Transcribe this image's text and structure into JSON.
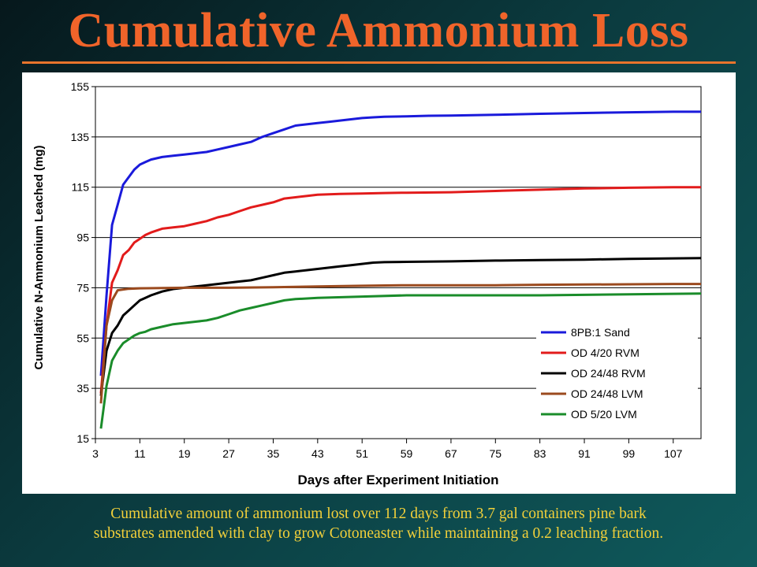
{
  "slide": {
    "title": "Cumulative Ammonium Loss",
    "caption_line1": "Cumulative amount of ammonium lost over 112 days from 3.7 gal containers pine bark",
    "caption_line2": "substrates amended with clay to grow Cotoneaster while maintaining a 0.2 leaching fraction.",
    "title_color": "#f0642a",
    "caption_color": "#f2d03a"
  },
  "chart_data": {
    "type": "line",
    "title": "",
    "xlabel": "Days after Experiment Initiation",
    "ylabel": "Cumulative N-Ammonium Leached (mg)",
    "xlim": [
      3,
      112
    ],
    "ylim": [
      15,
      155
    ],
    "x_ticks": [
      3,
      11,
      19,
      27,
      35,
      43,
      51,
      59,
      67,
      75,
      83,
      91,
      99,
      107
    ],
    "y_ticks": [
      15,
      35,
      55,
      75,
      95,
      115,
      135,
      155
    ],
    "grid": "horizontal",
    "legend_position": "bottom-right",
    "series": [
      {
        "name": "8PB:1 Sand",
        "color": "#1a1adb",
        "points": [
          [
            4,
            40
          ],
          [
            5,
            72
          ],
          [
            6,
            100
          ],
          [
            7,
            108
          ],
          [
            8,
            116
          ],
          [
            9,
            119
          ],
          [
            10,
            122
          ],
          [
            11,
            124
          ],
          [
            12,
            125
          ],
          [
            13,
            126
          ],
          [
            15,
            127
          ],
          [
            17,
            127.5
          ],
          [
            19,
            128
          ],
          [
            21,
            128.5
          ],
          [
            23,
            129
          ],
          [
            25,
            130
          ],
          [
            27,
            131
          ],
          [
            29,
            132
          ],
          [
            31,
            133
          ],
          [
            33,
            135
          ],
          [
            35,
            136.5
          ],
          [
            37,
            138
          ],
          [
            39,
            139.5
          ],
          [
            41,
            140
          ],
          [
            43,
            140.5
          ],
          [
            45,
            141
          ],
          [
            47,
            141.5
          ],
          [
            49,
            142
          ],
          [
            51,
            142.5
          ],
          [
            53,
            142.8
          ],
          [
            55,
            143
          ],
          [
            59,
            143.2
          ],
          [
            63,
            143.4
          ],
          [
            67,
            143.5
          ],
          [
            75,
            143.8
          ],
          [
            83,
            144.2
          ],
          [
            91,
            144.5
          ],
          [
            99,
            144.8
          ],
          [
            107,
            145
          ],
          [
            112,
            145
          ]
        ]
      },
      {
        "name": "OD 4/20 RVM",
        "color": "#e21b1b",
        "points": [
          [
            4,
            33
          ],
          [
            5,
            60
          ],
          [
            6,
            77
          ],
          [
            7,
            82
          ],
          [
            8,
            88
          ],
          [
            9,
            90
          ],
          [
            10,
            93
          ],
          [
            11,
            94.5
          ],
          [
            12,
            96
          ],
          [
            13,
            97
          ],
          [
            15,
            98.5
          ],
          [
            17,
            99
          ],
          [
            19,
            99.5
          ],
          [
            21,
            100.5
          ],
          [
            23,
            101.5
          ],
          [
            25,
            103
          ],
          [
            27,
            104
          ],
          [
            29,
            105.5
          ],
          [
            31,
            107
          ],
          [
            33,
            108
          ],
          [
            35,
            109
          ],
          [
            37,
            110.5
          ],
          [
            39,
            111
          ],
          [
            41,
            111.5
          ],
          [
            43,
            112
          ],
          [
            47,
            112.3
          ],
          [
            51,
            112.5
          ],
          [
            55,
            112.7
          ],
          [
            59,
            112.8
          ],
          [
            67,
            113
          ],
          [
            75,
            113.5
          ],
          [
            83,
            114
          ],
          [
            91,
            114.5
          ],
          [
            99,
            114.8
          ],
          [
            107,
            115
          ],
          [
            112,
            115
          ]
        ]
      },
      {
        "name": "OD 24/48 RVM",
        "color": "#000000",
        "points": [
          [
            4,
            32
          ],
          [
            5,
            50
          ],
          [
            6,
            57
          ],
          [
            7,
            60
          ],
          [
            8,
            64
          ],
          [
            9,
            66
          ],
          [
            10,
            68
          ],
          [
            11,
            70
          ],
          [
            12,
            71
          ],
          [
            13,
            72
          ],
          [
            15,
            73.5
          ],
          [
            17,
            74.5
          ],
          [
            19,
            75
          ],
          [
            21,
            75.5
          ],
          [
            23,
            76
          ],
          [
            25,
            76.5
          ],
          [
            27,
            77
          ],
          [
            29,
            77.5
          ],
          [
            31,
            78
          ],
          [
            33,
            79
          ],
          [
            35,
            80
          ],
          [
            37,
            81
          ],
          [
            39,
            81.5
          ],
          [
            41,
            82
          ],
          [
            43,
            82.5
          ],
          [
            45,
            83
          ],
          [
            47,
            83.5
          ],
          [
            49,
            84
          ],
          [
            51,
            84.5
          ],
          [
            53,
            85
          ],
          [
            55,
            85.2
          ],
          [
            59,
            85.3
          ],
          [
            67,
            85.5
          ],
          [
            75,
            85.8
          ],
          [
            83,
            86
          ],
          [
            91,
            86.2
          ],
          [
            99,
            86.5
          ],
          [
            107,
            86.7
          ],
          [
            112,
            86.8
          ]
        ]
      },
      {
        "name": "OD 24/48 LVM",
        "color": "#9b4a1e",
        "points": [
          [
            4,
            29
          ],
          [
            5,
            60
          ],
          [
            6,
            70
          ],
          [
            7,
            74
          ],
          [
            9,
            74.6
          ],
          [
            11,
            74.8
          ],
          [
            19,
            75
          ],
          [
            27,
            75
          ],
          [
            35,
            75.2
          ],
          [
            43,
            75.5
          ],
          [
            51,
            75.8
          ],
          [
            59,
            76
          ],
          [
            67,
            76
          ],
          [
            75,
            76
          ],
          [
            83,
            76.2
          ],
          [
            91,
            76.3
          ],
          [
            99,
            76.4
          ],
          [
            107,
            76.5
          ],
          [
            112,
            76.5
          ]
        ]
      },
      {
        "name": "OD 5/20 LVM",
        "color": "#1a8c2a",
        "points": [
          [
            4,
            19
          ],
          [
            5,
            36
          ],
          [
            6,
            46
          ],
          [
            7,
            50
          ],
          [
            8,
            53
          ],
          [
            9,
            54.5
          ],
          [
            10,
            56
          ],
          [
            11,
            57
          ],
          [
            12,
            57.5
          ],
          [
            13,
            58.5
          ],
          [
            15,
            59.5
          ],
          [
            17,
            60.5
          ],
          [
            19,
            61
          ],
          [
            21,
            61.5
          ],
          [
            23,
            62
          ],
          [
            25,
            63
          ],
          [
            27,
            64.5
          ],
          [
            29,
            66
          ],
          [
            31,
            67
          ],
          [
            33,
            68
          ],
          [
            35,
            69
          ],
          [
            37,
            70
          ],
          [
            39,
            70.5
          ],
          [
            43,
            71
          ],
          [
            51,
            71.5
          ],
          [
            59,
            72
          ],
          [
            67,
            72
          ],
          [
            75,
            72
          ],
          [
            83,
            72
          ],
          [
            91,
            72.2
          ],
          [
            99,
            72.4
          ],
          [
            107,
            72.6
          ],
          [
            112,
            72.7
          ]
        ]
      }
    ]
  }
}
